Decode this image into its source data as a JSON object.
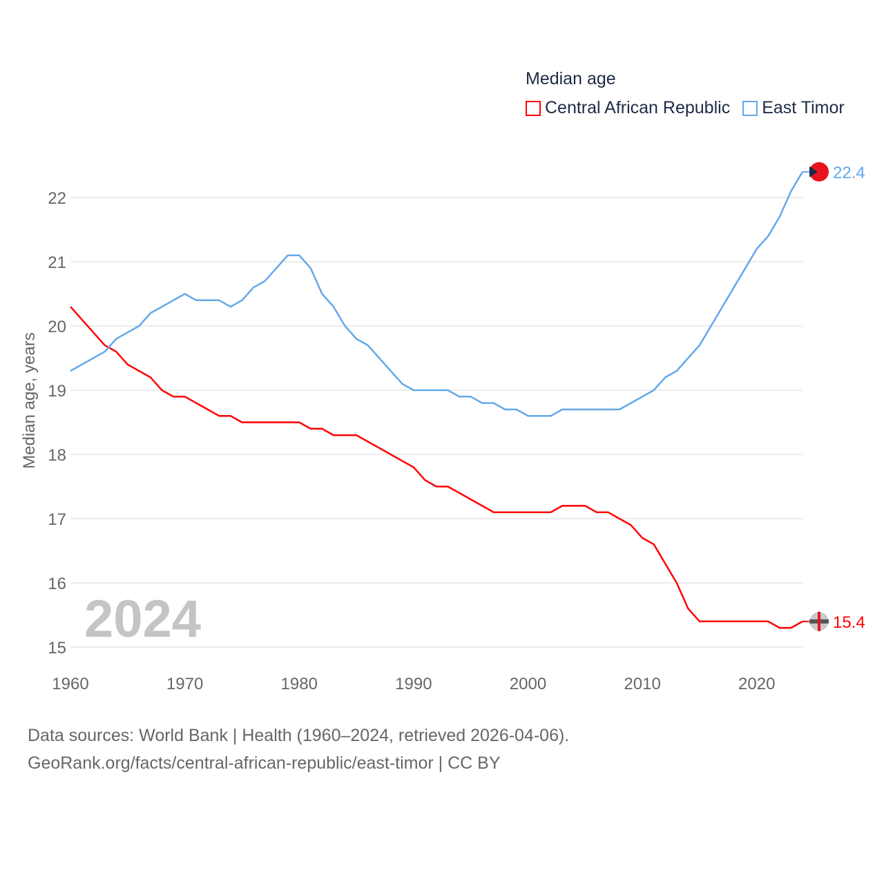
{
  "legend": {
    "title": "Median age"
  },
  "footer": {
    "line1": "Data sources: World Bank | Health (1960–2024, retrieved 2026-04-06).",
    "line2": "GeoRank.org/facts/central-african-republic/east-timor | CC BY"
  },
  "chart_data": {
    "type": "line",
    "ylabel": "Median age, years",
    "year_label": "2024",
    "ylim": [
      15,
      22
    ],
    "xlim": [
      1960,
      2024
    ],
    "xticks": [
      1960,
      1970,
      1980,
      1990,
      2000,
      2010,
      2020
    ],
    "yticks": [
      15,
      16,
      17,
      18,
      19,
      20,
      21,
      22
    ],
    "grid": true,
    "legend_placement": "top-right",
    "x": [
      1960,
      1961,
      1962,
      1963,
      1964,
      1965,
      1966,
      1967,
      1968,
      1969,
      1970,
      1971,
      1972,
      1973,
      1974,
      1975,
      1976,
      1977,
      1978,
      1979,
      1980,
      1981,
      1982,
      1983,
      1984,
      1985,
      1986,
      1987,
      1988,
      1989,
      1990,
      1991,
      1992,
      1993,
      1994,
      1995,
      1996,
      1997,
      1998,
      1999,
      2000,
      2001,
      2002,
      2003,
      2004,
      2005,
      2006,
      2007,
      2008,
      2009,
      2010,
      2011,
      2012,
      2013,
      2014,
      2015,
      2016,
      2017,
      2018,
      2019,
      2020,
      2021,
      2022,
      2023,
      2024
    ],
    "series": [
      {
        "name": "Central African Republic",
        "color": "#ff0000",
        "end_label": "15.4",
        "values": [
          20.3,
          20.1,
          19.9,
          19.7,
          19.6,
          19.4,
          19.3,
          19.2,
          19.0,
          18.9,
          18.9,
          18.8,
          18.7,
          18.6,
          18.6,
          18.5,
          18.5,
          18.5,
          18.5,
          18.5,
          18.5,
          18.4,
          18.4,
          18.3,
          18.3,
          18.3,
          18.2,
          18.1,
          18.0,
          17.9,
          17.8,
          17.6,
          17.5,
          17.5,
          17.4,
          17.3,
          17.2,
          17.1,
          17.1,
          17.1,
          17.1,
          17.1,
          17.1,
          17.2,
          17.2,
          17.2,
          17.1,
          17.1,
          17.0,
          16.9,
          16.7,
          16.6,
          16.3,
          16.0,
          15.6,
          15.4,
          15.4,
          15.4,
          15.4,
          15.4,
          15.4,
          15.4,
          15.3,
          15.3,
          15.4
        ]
      },
      {
        "name": "East Timor",
        "color": "#63a8ea",
        "end_label": "22.4",
        "values": [
          19.3,
          19.4,
          19.5,
          19.6,
          19.8,
          19.9,
          20.0,
          20.2,
          20.3,
          20.4,
          20.5,
          20.4,
          20.4,
          20.4,
          20.3,
          20.4,
          20.6,
          20.7,
          20.9,
          21.1,
          21.1,
          20.9,
          20.5,
          20.3,
          20.0,
          19.8,
          19.7,
          19.5,
          19.3,
          19.1,
          19.0,
          19.0,
          19.0,
          19.0,
          18.9,
          18.9,
          18.8,
          18.8,
          18.7,
          18.7,
          18.6,
          18.6,
          18.6,
          18.7,
          18.7,
          18.7,
          18.7,
          18.7,
          18.7,
          18.8,
          18.9,
          19.0,
          19.2,
          19.3,
          19.5,
          19.7,
          20.0,
          20.3,
          20.6,
          20.9,
          21.2,
          21.4,
          21.7,
          22.1,
          22.4
        ]
      }
    ]
  }
}
